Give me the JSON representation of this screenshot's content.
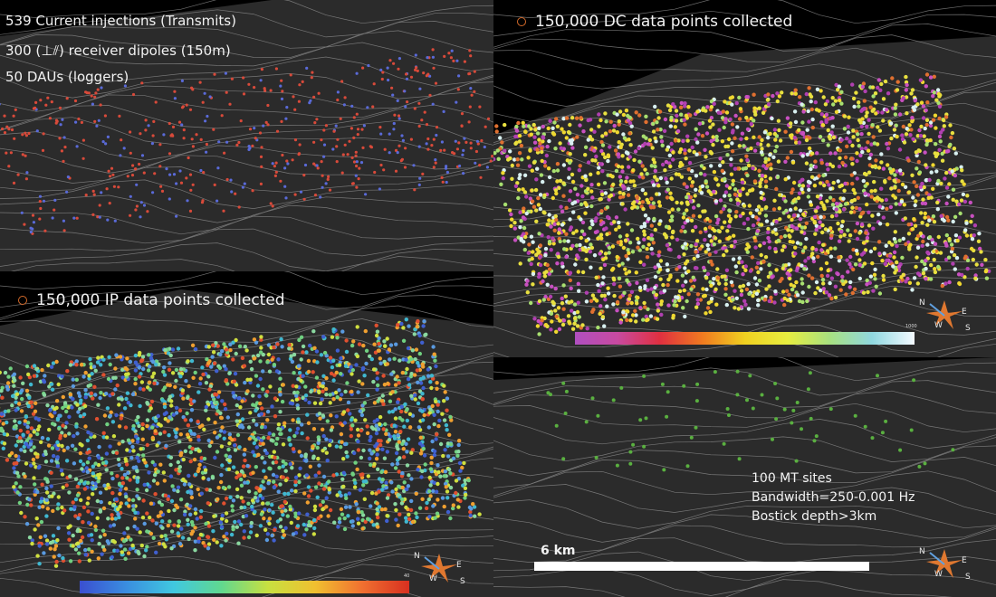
{
  "panels": {
    "transmits": {
      "lines": [
        "539 Current injections (Transmits)",
        "300 (⊥⫽) receiver dipoles (150m)",
        "50 DAUs (loggers)"
      ]
    },
    "dc": {
      "label": "150,000 DC data points collected",
      "colorbar_max": "1000",
      "colorbar_colors": [
        "#b04fc0",
        "#c84aa0",
        "#e03040",
        "#f07a20",
        "#f0d020",
        "#e8ee40",
        "#a8e080",
        "#90d8e0",
        "#f4faff"
      ]
    },
    "ip": {
      "label": "150,000 IP data points collected",
      "colorbar_max": "40",
      "colorbar_colors": [
        "#3a4fd0",
        "#3a8ee0",
        "#40c8e0",
        "#60d890",
        "#c8e040",
        "#f0c030",
        "#f07030",
        "#d83020"
      ]
    },
    "mt": {
      "lines": [
        "100 MT sites",
        "Bandwidth=250-0.001 Hz",
        "Bostick depth>3km"
      ],
      "scale_label": "6 km"
    }
  },
  "compass": {
    "n": "N",
    "e": "E",
    "w": "W",
    "s": "S"
  }
}
